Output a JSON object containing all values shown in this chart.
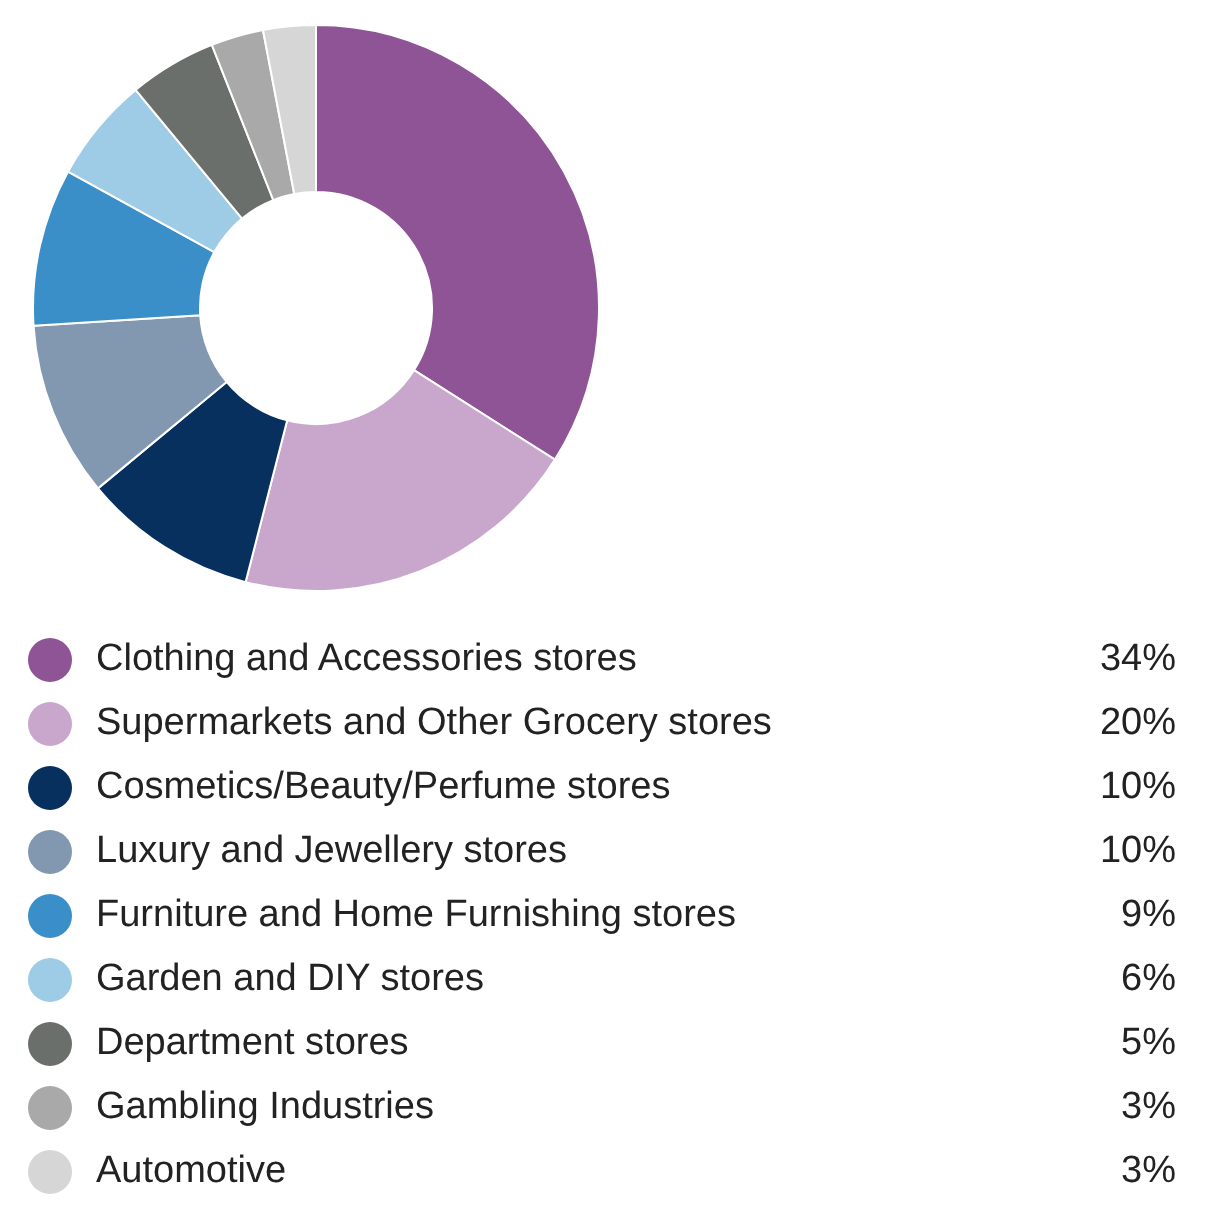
{
  "chart_data": {
    "type": "donut",
    "categories": [
      "Clothing and Accessories stores",
      "Supermarkets and Other Grocery stores",
      "Cosmetics/Beauty/Perfume stores",
      "Luxury and Jewellery stores",
      "Furniture and Home Furnishing stores",
      "Garden and DIY stores",
      "Department stores",
      "Gambling Industries",
      "Automotive"
    ],
    "values": [
      34,
      20,
      10,
      10,
      9,
      6,
      5,
      3,
      3
    ],
    "colors": [
      "#8e5496",
      "#c9a7cd",
      "#07305e",
      "#8298b0",
      "#3a8fc8",
      "#9ecbe6",
      "#6b6f6b",
      "#a9a9a9",
      "#d6d6d6"
    ],
    "value_labels": [
      "34%",
      "20%",
      "10%",
      "10%",
      "9%",
      "6%",
      "5%",
      "3%",
      "3%"
    ],
    "legend": "bottom"
  }
}
